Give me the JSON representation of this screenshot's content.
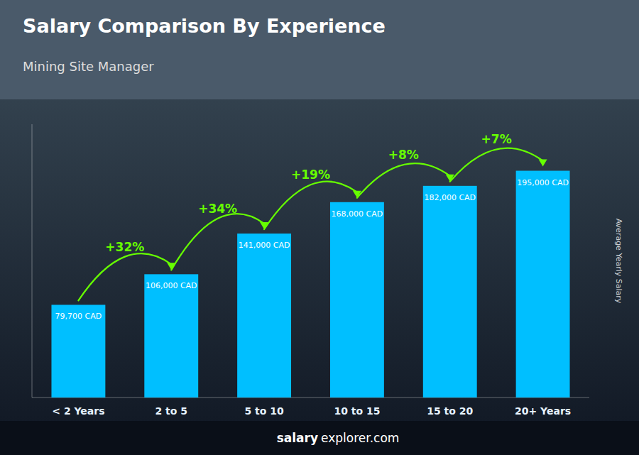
{
  "chart_data": {
    "type": "bar",
    "title": "Salary Comparison By Experience",
    "subtitle": "Mining Site Manager",
    "ylabel": "Average Yearly Salary",
    "categories": [
      "< 2 Years",
      "2 to 5",
      "5 to 10",
      "10 to 15",
      "15 to 20",
      "20+ Years"
    ],
    "values": [
      79700,
      106000,
      141000,
      168000,
      182000,
      195000
    ],
    "value_labels": [
      "79,700 CAD",
      "106,000 CAD",
      "141,000 CAD",
      "168,000 CAD",
      "182,000 CAD",
      "195,000 CAD"
    ],
    "data_labels": true,
    "color": "#00BFFF",
    "annotations": [
      {
        "text": "+32%",
        "color": "#66FF00"
      },
      {
        "text": "+34%",
        "color": "#66FF00"
      },
      {
        "text": "+19%",
        "color": "#66FF00"
      },
      {
        "text": "+8%",
        "color": "#66FF00"
      },
      {
        "text": "+7%",
        "color": "#66FF00"
      }
    ],
    "footer": [
      "salary",
      "explorer.com"
    ],
    "ylim": [
      0,
      235000
    ],
    "tick_labels": "x",
    "grid": false
  }
}
